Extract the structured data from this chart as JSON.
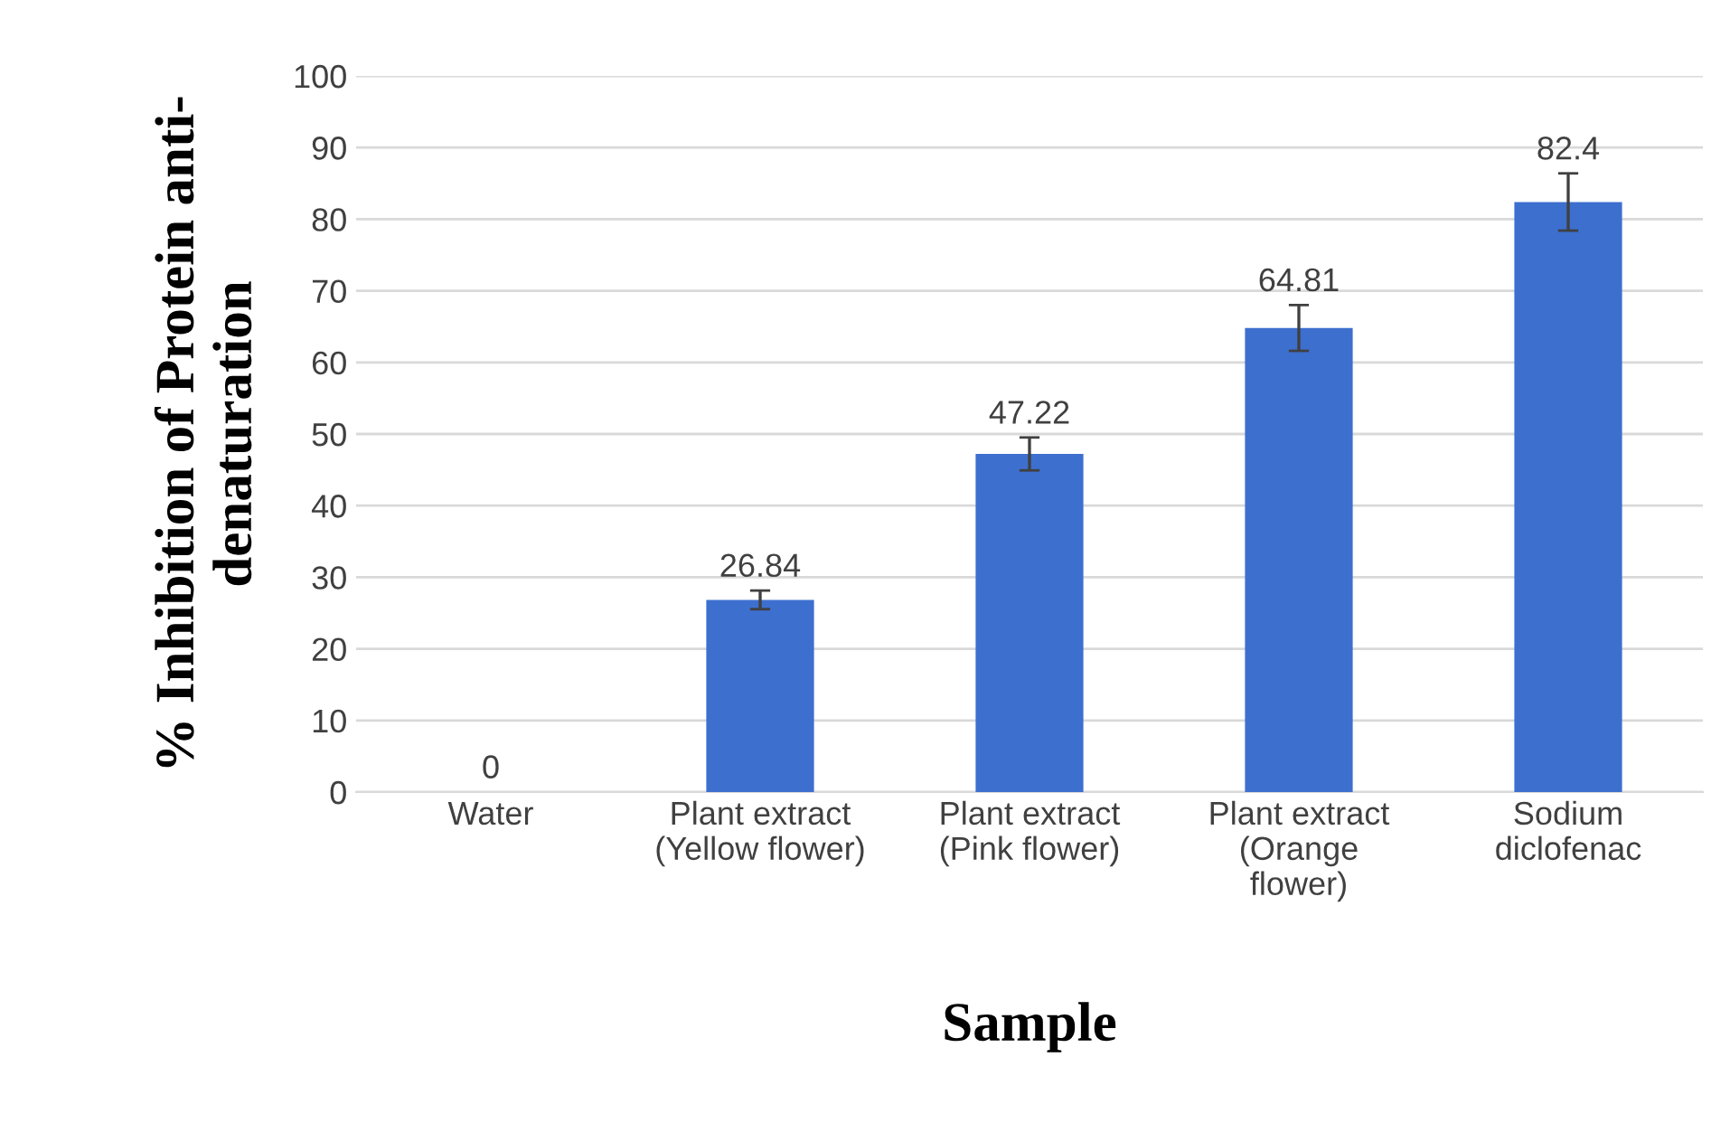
{
  "chart_data": {
    "type": "bar",
    "categories": [
      "Water",
      "Plant extract\n(Yellow flower)",
      "Plant extract\n(Pink flower)",
      "Plant extract\n(Orange\nflower)",
      "Sodium\ndiclofenac"
    ],
    "values": [
      0,
      26.84,
      47.22,
      64.81,
      82.4
    ],
    "errors": [
      null,
      1.3,
      2.3,
      3.2,
      4.0
    ],
    "color": "#3d6fcf",
    "data_labels": true,
    "xlabel": "Sample",
    "ylabel": "% Inhibition of Protein anti-\ndenaturation",
    "ylim": [
      0,
      100
    ],
    "yticks": [
      0,
      10,
      20,
      30,
      40,
      50,
      60,
      70,
      80,
      90,
      100
    ],
    "grid": "y",
    "legend": false
  }
}
